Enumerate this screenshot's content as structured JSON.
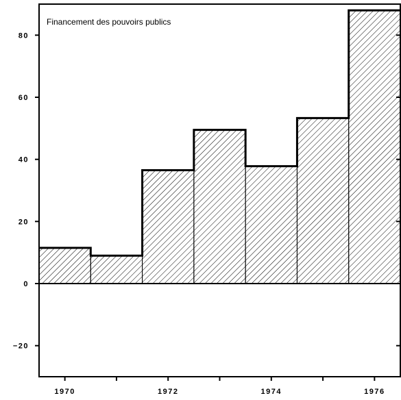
{
  "chart_data": {
    "type": "bar",
    "title": "Financement des pouvoirs publics",
    "xlabel": "",
    "ylabel": "",
    "x_tick_labels": [
      "1970",
      "1972",
      "1974",
      "1976"
    ],
    "y_ticks": [
      -20,
      0,
      20,
      40,
      60,
      80
    ],
    "y_tick_labels": [
      "−20",
      "0",
      "20",
      "40",
      "60",
      "80"
    ],
    "ylim": [
      -30,
      90
    ],
    "grid": false,
    "legend": "none",
    "bar_style": "diagonal-hatch",
    "outline_style": "thick-step",
    "colors": {
      "ink": "#000000",
      "background": "#ffffff"
    },
    "categories": [
      "1969.5",
      "1970.5",
      "1971.5",
      "1972.5",
      "1973.5",
      "1974.5",
      "1975.5"
    ],
    "values": [
      11.5,
      9.0,
      36.5,
      49.5,
      37.8,
      53.3,
      88.0
    ]
  }
}
